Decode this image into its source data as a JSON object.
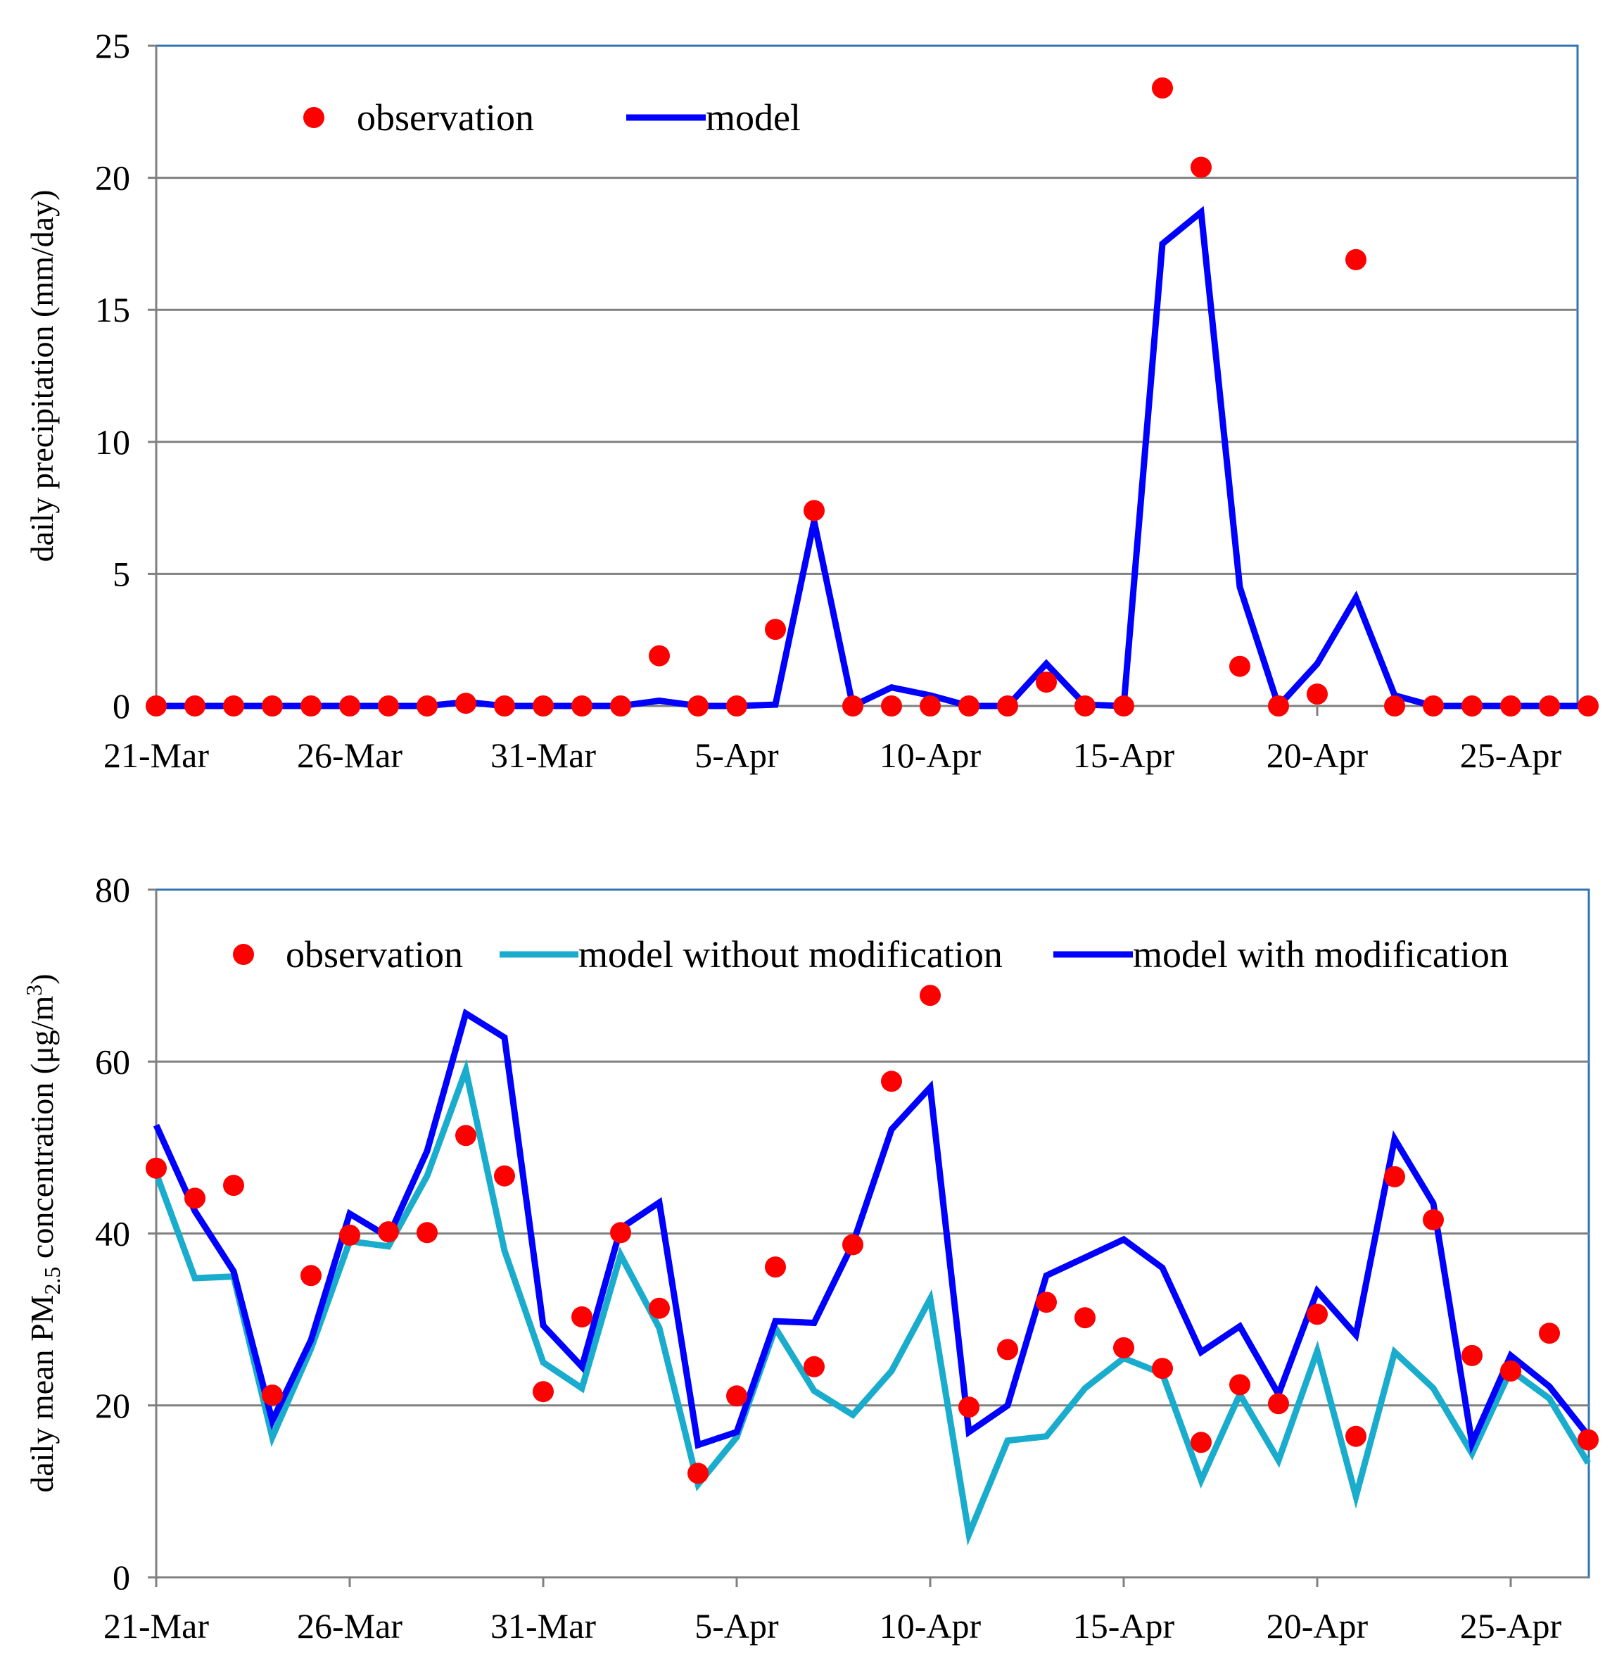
{
  "chart_data": [
    {
      "type": "line",
      "title": "",
      "xlabel": "",
      "ylabel": "daily precipitation (mm/day)",
      "ylim": [
        0,
        25
      ],
      "yticks": [
        0,
        5,
        10,
        15,
        20,
        25
      ],
      "grid": true,
      "legend_position": "top-left",
      "x_tick_labels": [
        "21-Mar",
        "26-Mar",
        "31-Mar",
        "5-Apr",
        "10-Apr",
        "15-Apr",
        "20-Apr",
        "25-Apr"
      ],
      "x_tick_day_index": [
        0,
        5,
        10,
        15,
        20,
        25,
        30,
        35
      ],
      "n_days": 38,
      "series": [
        {
          "name": "observation",
          "kind": "scatter",
          "color": "#ff0000",
          "values": [
            0,
            0,
            0,
            0,
            0,
            0,
            0,
            0,
            0.1,
            0,
            0,
            0,
            0,
            1.9,
            0,
            0,
            2.9,
            7.4,
            0,
            0,
            0,
            0,
            0,
            0.9,
            0,
            0,
            23.4,
            20.4,
            1.5,
            0,
            0.45,
            16.9,
            0,
            0,
            0,
            0,
            0,
            0
          ]
        },
        {
          "name": "model",
          "kind": "line",
          "color": "#0000ff",
          "values": [
            0,
            0,
            0,
            0,
            0,
            0,
            0,
            0,
            0.15,
            0,
            0,
            0,
            0,
            0.2,
            0,
            0,
            0.05,
            7.0,
            0,
            0.7,
            0.4,
            0,
            0,
            1.6,
            0.05,
            0,
            17.5,
            18.7,
            4.5,
            0,
            1.6,
            4.1,
            0.4,
            0,
            0,
            0,
            0,
            0
          ]
        }
      ]
    },
    {
      "type": "line",
      "title": "",
      "xlabel": "",
      "ylabel_main": "daily mean PM",
      "ylabel_sub": "2.5",
      "ylabel_tail": " concentration (μg/m",
      "ylabel_sup": "3",
      "ylabel_end": ")",
      "ylim": [
        0,
        80
      ],
      "yticks": [
        0,
        20,
        40,
        60,
        80
      ],
      "grid": true,
      "legend_position": "top",
      "x_tick_labels": [
        "21-Mar",
        "26-Mar",
        "31-Mar",
        "5-Apr",
        "10-Apr",
        "15-Apr",
        "20-Apr",
        "25-Apr"
      ],
      "x_tick_day_index": [
        0,
        5,
        10,
        15,
        20,
        25,
        30,
        35
      ],
      "n_days": 38,
      "series": [
        {
          "name": "observation",
          "kind": "scatter",
          "color": "#ff0000",
          "values": [
            47.6,
            44.1,
            45.6,
            21.2,
            35.1,
            39.8,
            40.2,
            40.1,
            51.4,
            46.7,
            21.6,
            30.3,
            40.1,
            31.3,
            12.1,
            21.1,
            36.1,
            24.5,
            38.7,
            57.7,
            67.7,
            19.8,
            26.5,
            32.0,
            30.2,
            26.7,
            24.3,
            15.7,
            22.4,
            20.2,
            30.6,
            16.4,
            46.6,
            41.6,
            25.8,
            24.0,
            28.4,
            16.0
          ]
        },
        {
          "name": "model without modification",
          "kind": "line",
          "color": "#1aaccc",
          "values": [
            47.0,
            34.8,
            35.0,
            16.3,
            26.6,
            39.1,
            38.5,
            46.7,
            59.0,
            38.0,
            25.0,
            22.0,
            37.5,
            29.0,
            10.8,
            16.3,
            29.0,
            21.7,
            18.9,
            24.0,
            32.4,
            5.0,
            15.9,
            16.4,
            22.0,
            25.5,
            23.7,
            11.3,
            21.3,
            13.6,
            26.3,
            9.4,
            26.2,
            22.0,
            14.4,
            24.1,
            20.8,
            13.3
          ]
        },
        {
          "name": "model with modification",
          "kind": "line",
          "color": "#0000ff",
          "values": [
            52.6,
            42.6,
            35.6,
            18.2,
            27.6,
            42.3,
            39.6,
            49.6,
            65.6,
            62.8,
            29.3,
            24.5,
            40.6,
            43.6,
            15.4,
            16.9,
            29.8,
            29.6,
            38.8,
            52.1,
            57.0,
            16.9,
            20.0,
            35.1,
            37.2,
            39.3,
            36.0,
            26.2,
            29.2,
            21.3,
            33.3,
            28.2,
            51.0,
            43.5,
            15.6,
            25.8,
            22.2,
            16.5
          ]
        }
      ]
    }
  ]
}
